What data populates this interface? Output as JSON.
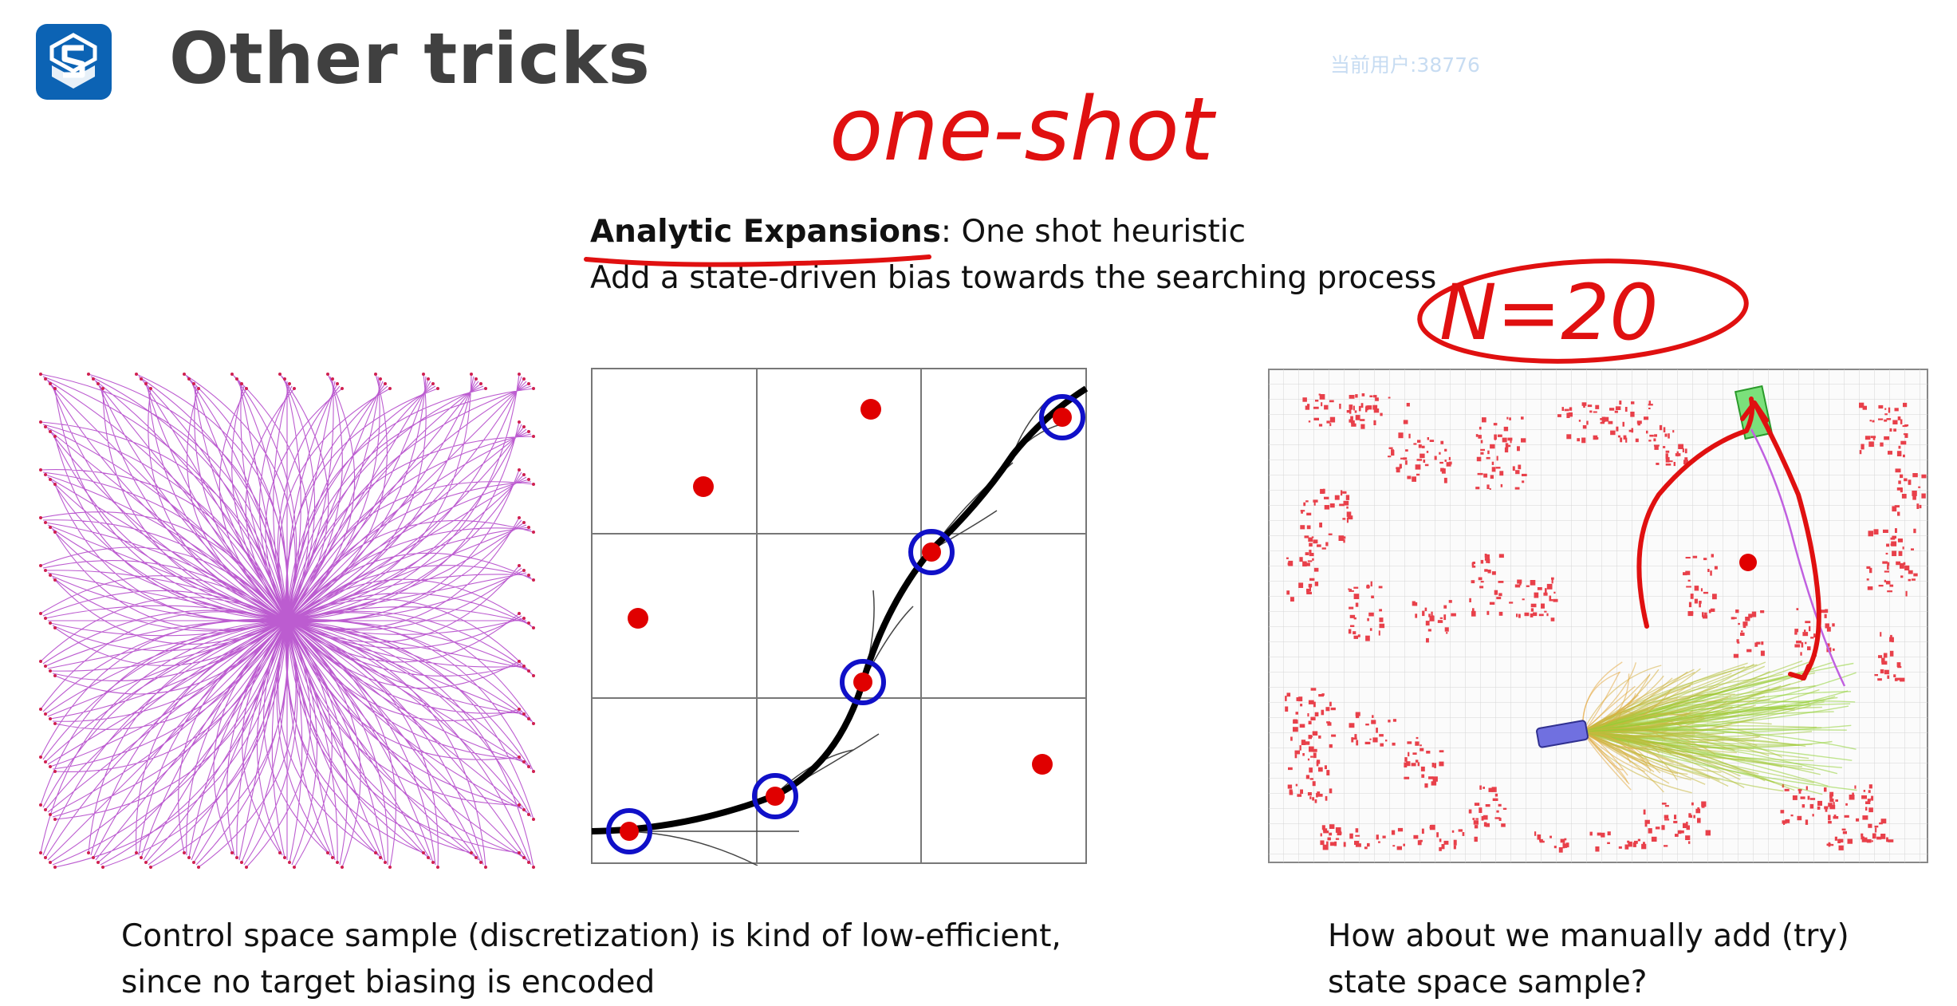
{
  "slide": {
    "title": "Other tricks",
    "watermark": "当前用户:38776",
    "subtitle": {
      "term": "Analytic Expansions",
      "term_suffix": ": One shot heuristic",
      "line2": "Add a state-driven bias towards the searching process"
    },
    "handwriting": {
      "top_note": "one-shot",
      "right_note": "N=20",
      "ink_color": "#e01010"
    },
    "captions": {
      "left_line1": "Control space sample (discretization) is kind of low-efficient,",
      "left_line2": "since no target biasing is encoded",
      "right_line1": "How about we manually add (try)",
      "right_line2": "state space sample?"
    },
    "colors": {
      "logo_blue": "#0c63b4",
      "title_gray": "#404040",
      "lattice_magenta": "#b040c8",
      "sample_red": "#e00000",
      "circle_blue": "#1010c8"
    },
    "icons": [
      "logo-icon"
    ]
  }
}
